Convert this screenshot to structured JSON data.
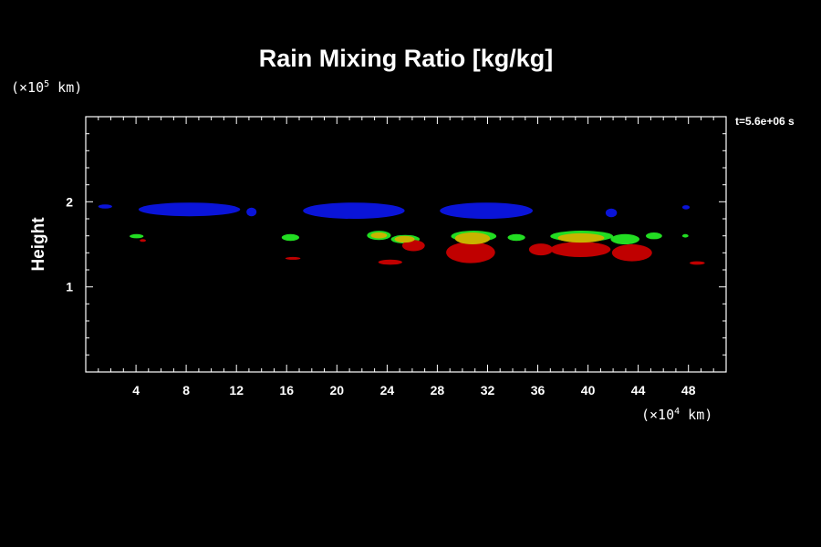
{
  "chart_data": {
    "type": "heatmap",
    "title": "Rain Mixing Ratio [kg/kg]",
    "xlabel": "",
    "ylabel": "Height",
    "x_unit": {
      "prefix": "(×10",
      "exp": "4",
      "suffix": " km)"
    },
    "y_unit": {
      "prefix": "(×10",
      "exp": "5",
      "suffix": " km)"
    },
    "time_label": "t=5.6e+06 s",
    "xlim": [
      0,
      51
    ],
    "ylim": [
      0,
      3
    ],
    "x_ticks": [
      4,
      8,
      12,
      16,
      20,
      24,
      28,
      32,
      36,
      40,
      44,
      48
    ],
    "y_ticks": [
      1,
      2
    ],
    "grid": false,
    "colors": {
      "background": "#000000",
      "axes": "#ffffff",
      "blue": "#0a14d8",
      "green": "#22dd22",
      "yellow": "#c8b400",
      "red": "#c00000"
    },
    "regions": [
      {
        "color": "blue",
        "x_range": [
          1.0,
          2.1
        ],
        "y_range": [
          1.92,
          1.97
        ]
      },
      {
        "color": "blue",
        "x_range": [
          4.2,
          12.3
        ],
        "y_range": [
          1.83,
          1.99
        ]
      },
      {
        "color": "blue",
        "x_range": [
          12.8,
          13.6
        ],
        "y_range": [
          1.83,
          1.93
        ]
      },
      {
        "color": "blue",
        "x_range": [
          17.3,
          25.4
        ],
        "y_range": [
          1.8,
          1.99
        ]
      },
      {
        "color": "blue",
        "x_range": [
          28.2,
          35.6
        ],
        "y_range": [
          1.8,
          1.99
        ]
      },
      {
        "color": "blue",
        "x_range": [
          41.4,
          42.3
        ],
        "y_range": [
          1.82,
          1.92
        ]
      },
      {
        "color": "blue",
        "x_range": [
          47.5,
          48.1
        ],
        "y_range": [
          1.91,
          1.96
        ]
      },
      {
        "color": "green",
        "x_range": [
          3.5,
          4.6
        ],
        "y_range": [
          1.57,
          1.62
        ]
      },
      {
        "color": "red",
        "x_range": [
          4.3,
          4.8
        ],
        "y_range": [
          1.53,
          1.56
        ]
      },
      {
        "color": "green",
        "x_range": [
          15.6,
          17.0
        ],
        "y_range": [
          1.54,
          1.62
        ]
      },
      {
        "color": "red",
        "x_range": [
          15.9,
          17.1
        ],
        "y_range": [
          1.32,
          1.35
        ]
      },
      {
        "color": "green",
        "x_range": [
          22.4,
          24.3
        ],
        "y_range": [
          1.55,
          1.66
        ]
      },
      {
        "color": "green",
        "x_range": [
          24.3,
          26.6
        ],
        "y_range": [
          1.51,
          1.61
        ]
      },
      {
        "color": "red",
        "x_range": [
          25.2,
          27.0
        ],
        "y_range": [
          1.42,
          1.55
        ]
      },
      {
        "color": "red",
        "x_range": [
          23.3,
          25.2
        ],
        "y_range": [
          1.26,
          1.32
        ]
      },
      {
        "color": "green",
        "x_range": [
          29.1,
          32.7
        ],
        "y_range": [
          1.53,
          1.66
        ]
      },
      {
        "color": "red",
        "x_range": [
          28.7,
          32.6
        ],
        "y_range": [
          1.28,
          1.53
        ]
      },
      {
        "color": "green",
        "x_range": [
          33.6,
          35.0
        ],
        "y_range": [
          1.54,
          1.62
        ]
      },
      {
        "color": "red",
        "x_range": [
          35.3,
          37.2
        ],
        "y_range": [
          1.37,
          1.51
        ]
      },
      {
        "color": "green",
        "x_range": [
          37.0,
          42.0
        ],
        "y_range": [
          1.53,
          1.66
        ]
      },
      {
        "color": "red",
        "x_range": [
          37.0,
          41.8
        ],
        "y_range": [
          1.35,
          1.53
        ]
      },
      {
        "color": "green",
        "x_range": [
          41.8,
          44.1
        ],
        "y_range": [
          1.5,
          1.62
        ]
      },
      {
        "color": "red",
        "x_range": [
          41.9,
          45.1
        ],
        "y_range": [
          1.3,
          1.5
        ]
      },
      {
        "color": "green",
        "x_range": [
          44.6,
          45.9
        ],
        "y_range": [
          1.56,
          1.64
        ]
      },
      {
        "color": "green",
        "x_range": [
          47.5,
          48.0
        ],
        "y_range": [
          1.58,
          1.62
        ]
      },
      {
        "color": "red",
        "x_range": [
          48.1,
          49.3
        ],
        "y_range": [
          1.26,
          1.3
        ]
      },
      {
        "color": "yellow",
        "x_range": [
          22.7,
          24.0
        ],
        "y_range": [
          1.57,
          1.64
        ]
      },
      {
        "color": "yellow",
        "x_range": [
          24.6,
          26.2
        ],
        "y_range": [
          1.52,
          1.6
        ]
      },
      {
        "color": "yellow",
        "x_range": [
          29.4,
          32.2
        ],
        "y_range": [
          1.5,
          1.64
        ]
      },
      {
        "color": "yellow",
        "x_range": [
          37.6,
          41.3
        ],
        "y_range": [
          1.52,
          1.63
        ]
      }
    ]
  }
}
